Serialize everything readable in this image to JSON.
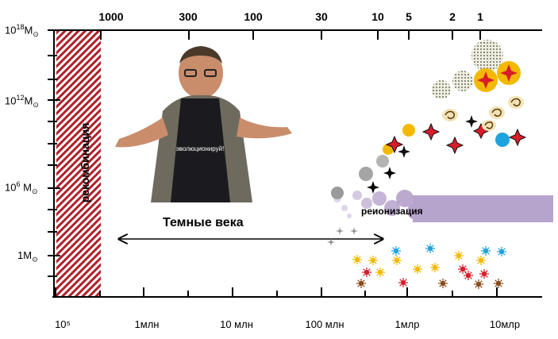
{
  "top_axis": {
    "labels": [
      "1000",
      "300",
      "100",
      "30",
      "10",
      "5",
      "2",
      "1"
    ]
  },
  "bottom_axis": {
    "labels": [
      "10⁵",
      "1млн",
      "10 млн",
      "100 млн",
      "1млр",
      "10млр"
    ]
  },
  "left_axis": {
    "labels": [
      {
        "base": "10",
        "exp": "18",
        "unit": "M",
        "sub": "⊙"
      },
      {
        "base": "10",
        "exp": "12",
        "unit": "M",
        "sub": "⊙"
      },
      {
        "base": "10",
        "exp": "6",
        "unit": " M",
        "sub": "⊙"
      },
      {
        "base": "1",
        "exp": "",
        "unit": "M",
        "sub": "⊙"
      }
    ]
  },
  "annotations": {
    "recombination": "рекомбинация",
    "dark_ages": "Темные века",
    "reionization": "реионизация"
  },
  "colors": {
    "recombination_hatch": "#b0202a",
    "reionization_band": "#b7a4cc",
    "galaxy_yellow": "#f2b900",
    "star_red": "#d81c2a",
    "blue_blob": "#1ea3dd"
  },
  "person_shirt_text": "эволюционируй!"
}
